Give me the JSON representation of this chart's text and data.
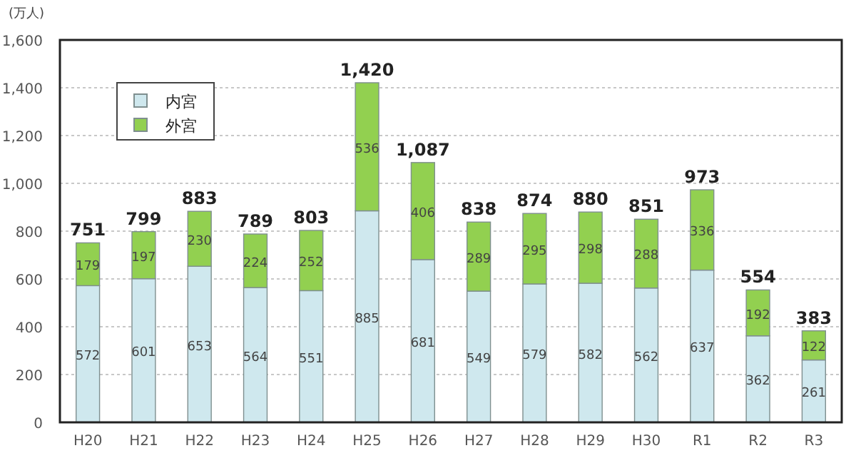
{
  "chart_data": {
    "type": "bar",
    "ylabel": "(万人)",
    "categories": [
      "H20",
      "H21",
      "H22",
      "H23",
      "H24",
      "H25",
      "H26",
      "H27",
      "H28",
      "H29",
      "H30",
      "R1",
      "R2",
      "R3"
    ],
    "series": [
      {
        "name": "内宮",
        "color": "#cfe8ee",
        "values": [
          572,
          601,
          653,
          564,
          551,
          885,
          681,
          549,
          579,
          582,
          562,
          637,
          362,
          261
        ]
      },
      {
        "name": "外宮",
        "color": "#92d050",
        "values": [
          179,
          197,
          230,
          224,
          252,
          536,
          406,
          289,
          295,
          298,
          288,
          336,
          192,
          122
        ]
      }
    ],
    "stacked": true,
    "data_labels": true,
    "totals": [
      "751",
      "799",
      "883",
      "789",
      "803",
      "1,420",
      "1,087",
      "838",
      "874",
      "880",
      "851",
      "973",
      "554",
      "383"
    ],
    "ylim": [
      0,
      1600
    ],
    "yticks": [
      0,
      200,
      400,
      600,
      800,
      {
        "value": 1000,
        "label": "1,000"
      },
      {
        "value": 1200,
        "label": "1,200"
      },
      {
        "value": 1400,
        "label": "1,400"
      },
      {
        "value": 1600,
        "label": "1,600"
      }
    ],
    "grid": "y",
    "legend": "top left"
  }
}
